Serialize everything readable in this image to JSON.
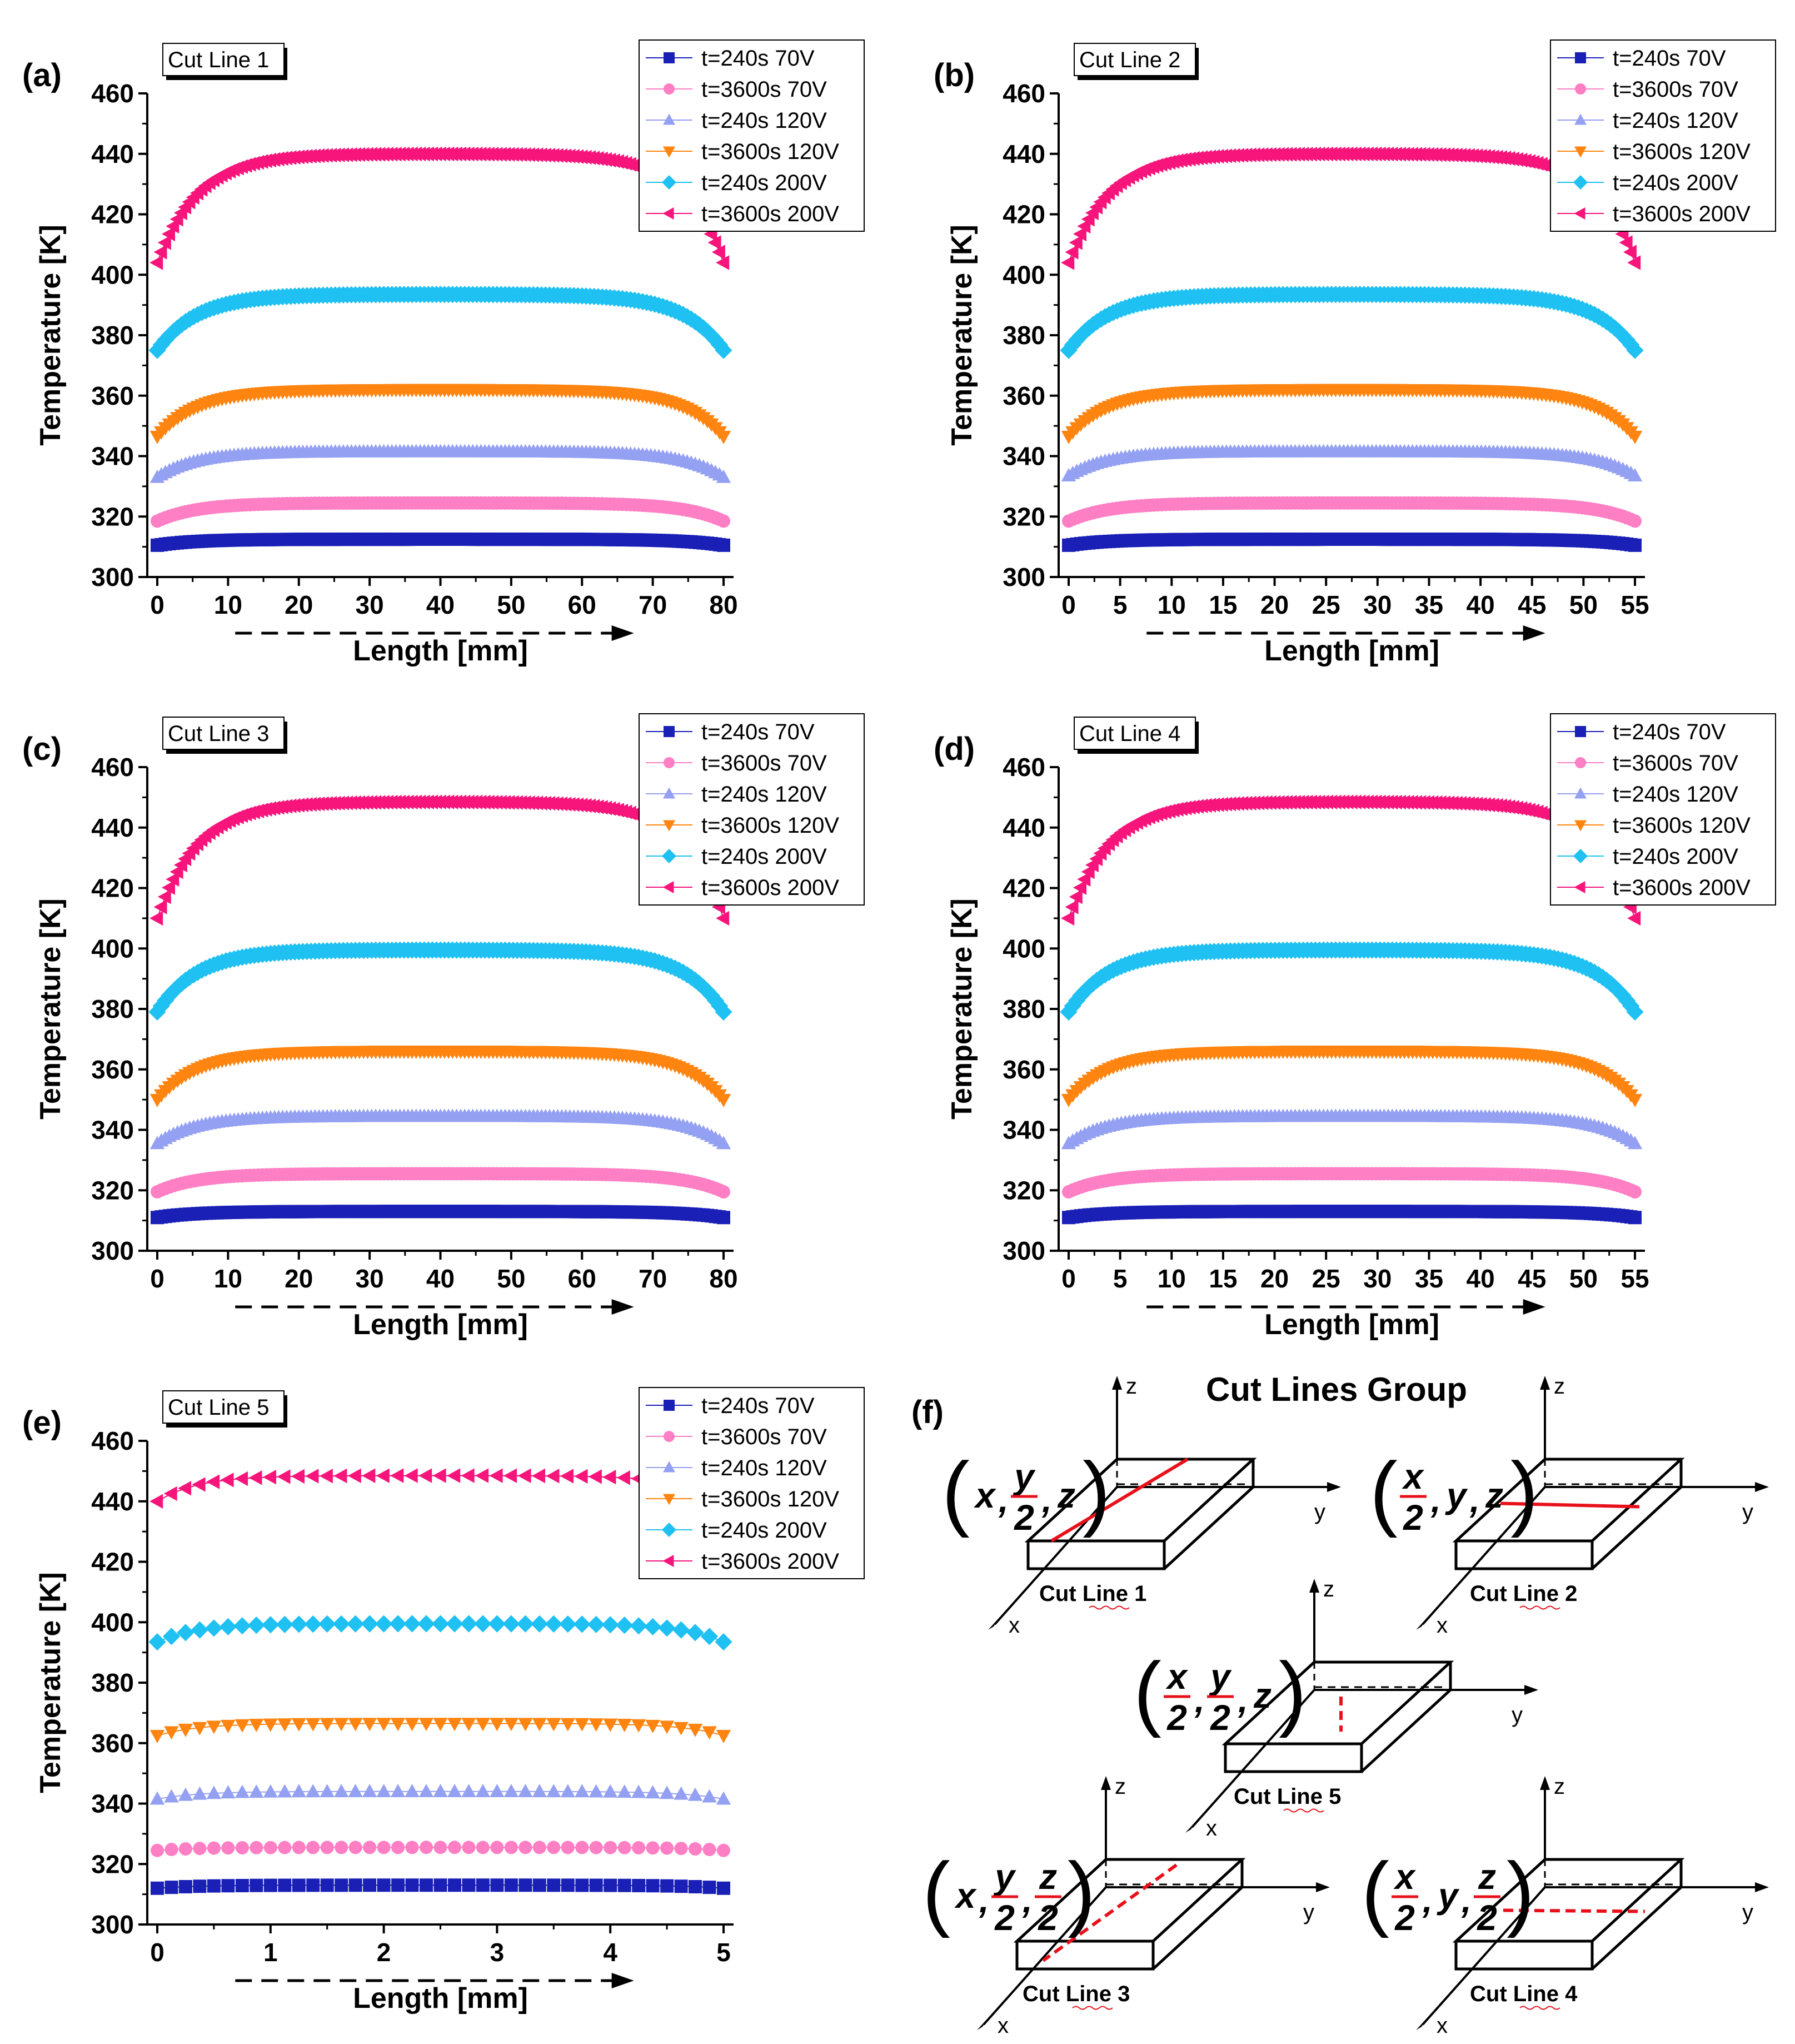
{
  "chart_data": [
    {
      "type": "scatter",
      "panel": "(a)",
      "cut_line_label": "Cut Line 1",
      "xlabel": "Length [mm]",
      "ylabel": "Temperature [K]",
      "xlim": [
        0,
        80
      ],
      "ylim": [
        300,
        460
      ],
      "xticks": [
        0,
        10,
        20,
        30,
        40,
        50,
        60,
        70,
        80
      ],
      "yticks": [
        300,
        320,
        340,
        360,
        380,
        400,
        420,
        440,
        460
      ],
      "legend_position": "top-right",
      "series": [
        {
          "name": "t=240s 70V",
          "marker": "square",
          "color": "#1a1fb5",
          "edge": 310.5,
          "peak": 312.5
        },
        {
          "name": "t=3600s 70V",
          "marker": "circle",
          "color": "#ff7fc4",
          "edge": 318.5,
          "peak": 324.5
        },
        {
          "name": "t=240s 120V",
          "marker": "triangle-up",
          "color": "#94a0f2",
          "edge": 333,
          "peak": 341.5
        },
        {
          "name": "t=3600s 120V",
          "marker": "triangle-down",
          "color": "#ff8410",
          "edge": 346.5,
          "peak": 362
        },
        {
          "name": "t=240s 200V",
          "marker": "diamond",
          "color": "#1fc0f2",
          "edge": 375,
          "peak": 393.5
        },
        {
          "name": "t=3600s 200V",
          "marker": "triangle-left",
          "color": "#f7147b",
          "edge": 404,
          "peak": 440
        }
      ]
    },
    {
      "type": "scatter",
      "panel": "(b)",
      "cut_line_label": "Cut Line 2",
      "xlabel": "Length [mm]",
      "ylabel": "Temperature [K]",
      "xlim": [
        0,
        55
      ],
      "ylim": [
        300,
        460
      ],
      "xticks": [
        0,
        5,
        10,
        15,
        20,
        25,
        30,
        35,
        40,
        45,
        50,
        55
      ],
      "yticks": [
        300,
        320,
        340,
        360,
        380,
        400,
        420,
        440,
        460
      ],
      "legend_position": "top-right",
      "series": [
        {
          "name": "t=240s 70V",
          "marker": "square",
          "color": "#1a1fb5",
          "edge": 310.5,
          "peak": 312.5
        },
        {
          "name": "t=3600s 70V",
          "marker": "circle",
          "color": "#ff7fc4",
          "edge": 318.5,
          "peak": 324.5
        },
        {
          "name": "t=240s 120V",
          "marker": "triangle-up",
          "color": "#94a0f2",
          "edge": 333.5,
          "peak": 341.5
        },
        {
          "name": "t=3600s 120V",
          "marker": "triangle-down",
          "color": "#ff8410",
          "edge": 346.5,
          "peak": 362
        },
        {
          "name": "t=240s 200V",
          "marker": "diamond",
          "color": "#1fc0f2",
          "edge": 375,
          "peak": 393.5
        },
        {
          "name": "t=3600s 200V",
          "marker": "triangle-left",
          "color": "#f7147b",
          "edge": 404,
          "peak": 440
        }
      ]
    },
    {
      "type": "scatter",
      "panel": "(c)",
      "cut_line_label": "Cut Line 3",
      "xlabel": "Length [mm]",
      "ylabel": "Temperature [K]",
      "xlim": [
        0,
        80
      ],
      "ylim": [
        300,
        460
      ],
      "xticks": [
        0,
        10,
        20,
        30,
        40,
        50,
        60,
        70,
        80
      ],
      "yticks": [
        300,
        320,
        340,
        360,
        380,
        400,
        420,
        440,
        460
      ],
      "legend_position": "top-right",
      "series": [
        {
          "name": "t=240s 70V",
          "marker": "square",
          "color": "#1a1fb5",
          "edge": 311,
          "peak": 313
        },
        {
          "name": "t=3600s 70V",
          "marker": "circle",
          "color": "#ff7fc4",
          "edge": 319.5,
          "peak": 325.5
        },
        {
          "name": "t=240s 120V",
          "marker": "triangle-up",
          "color": "#94a0f2",
          "edge": 335.5,
          "peak": 344.5
        },
        {
          "name": "t=3600s 120V",
          "marker": "triangle-down",
          "color": "#ff8410",
          "edge": 350,
          "peak": 366
        },
        {
          "name": "t=240s 200V",
          "marker": "diamond",
          "color": "#1fc0f2",
          "edge": 379,
          "peak": 399.5
        },
        {
          "name": "t=3600s 200V",
          "marker": "triangle-left",
          "color": "#f7147b",
          "edge": 410,
          "peak": 448.5
        }
      ]
    },
    {
      "type": "scatter",
      "panel": "(d)",
      "cut_line_label": "Cut Line 4",
      "xlabel": "Length [mm]",
      "ylabel": "Temperature [K]",
      "xlim": [
        0,
        55
      ],
      "ylim": [
        300,
        460
      ],
      "xticks": [
        0,
        5,
        10,
        15,
        20,
        25,
        30,
        35,
        40,
        45,
        50,
        55
      ],
      "yticks": [
        300,
        320,
        340,
        360,
        380,
        400,
        420,
        440,
        460
      ],
      "legend_position": "top-right",
      "series": [
        {
          "name": "t=240s 70V",
          "marker": "square",
          "color": "#1a1fb5",
          "edge": 311,
          "peak": 313
        },
        {
          "name": "t=3600s 70V",
          "marker": "circle",
          "color": "#ff7fc4",
          "edge": 319.5,
          "peak": 325.5
        },
        {
          "name": "t=240s 120V",
          "marker": "triangle-up",
          "color": "#94a0f2",
          "edge": 335.5,
          "peak": 344.5
        },
        {
          "name": "t=3600s 120V",
          "marker": "triangle-down",
          "color": "#ff8410",
          "edge": 350,
          "peak": 366
        },
        {
          "name": "t=240s 200V",
          "marker": "diamond",
          "color": "#1fc0f2",
          "edge": 379,
          "peak": 399.5
        },
        {
          "name": "t=3600s 200V",
          "marker": "triangle-left",
          "color": "#f7147b",
          "edge": 410,
          "peak": 448.5
        }
      ]
    },
    {
      "type": "scatter",
      "panel": "(e)",
      "cut_line_label": "Cut Line 5",
      "xlabel": "Length [mm]",
      "ylabel": "Temperature [K]",
      "xlim": [
        0,
        5
      ],
      "ylim": [
        300,
        460
      ],
      "xticks": [
        0,
        1,
        2,
        3,
        4,
        5
      ],
      "yticks": [
        300,
        320,
        340,
        360,
        380,
        400,
        420,
        440,
        460
      ],
      "legend_position": "top-right",
      "series": [
        {
          "name": "t=240s 70V",
          "marker": "square",
          "color": "#1a1fb5",
          "edge": 312,
          "peak": 313
        },
        {
          "name": "t=3600s 70V",
          "marker": "circle",
          "color": "#ff7fc4",
          "edge": 324.5,
          "peak": 325.5
        },
        {
          "name": "t=240s 120V",
          "marker": "triangle-up",
          "color": "#94a0f2",
          "edge": 341.5,
          "peak": 344
        },
        {
          "name": "t=3600s 120V",
          "marker": "triangle-down",
          "color": "#ff8410",
          "edge": 362.5,
          "peak": 366.5
        },
        {
          "name": "t=240s 200V",
          "marker": "diamond",
          "color": "#1fc0f2",
          "edge": 393.5,
          "peak": 399.5
        },
        {
          "name": "t=3600s 200V",
          "marker": "triangle-left",
          "color": "#f7147b",
          "edge": 440,
          "peak": 448.5
        }
      ]
    }
  ],
  "schematic": {
    "panel": "(f)",
    "title": "Cut Lines Group",
    "items": [
      {
        "label": "Cut Line 1",
        "coord": [
          "x",
          "y/2",
          "z"
        ]
      },
      {
        "label": "Cut Line 2",
        "coord": [
          "x/2",
          "y",
          "z"
        ]
      },
      {
        "label": "Cut Line 5",
        "coord": [
          "x/2",
          "y/2",
          "z"
        ]
      },
      {
        "label": "Cut Line 3",
        "coord": [
          "x",
          "y/2",
          "z/2"
        ]
      },
      {
        "label": "Cut Line 4",
        "coord": [
          "x/2",
          "y",
          "z/2"
        ]
      }
    ],
    "axis_names": {
      "x": "x",
      "y": "y",
      "z": "z"
    },
    "label_color": "#1f4e96",
    "coord_color": "#e8101a",
    "cut_color": "#e8101a"
  }
}
